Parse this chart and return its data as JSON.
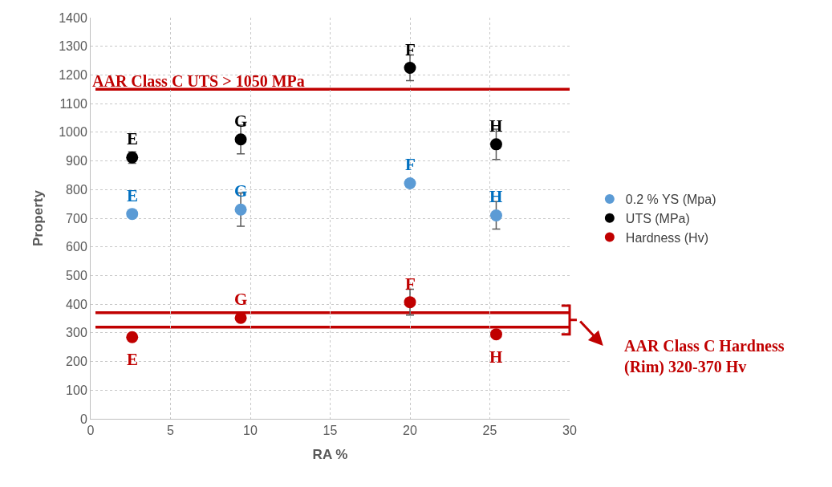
{
  "chart_data": {
    "type": "scatter",
    "xlabel": "RA %",
    "ylabel": "Property",
    "xlim": [
      0,
      30
    ],
    "xticks": [
      0,
      5,
      10,
      15,
      20,
      25,
      30
    ],
    "ylim": [
      0,
      1400
    ],
    "yticks": [
      0,
      100,
      200,
      300,
      400,
      500,
      600,
      700,
      800,
      900,
      1000,
      1100,
      1200,
      1300,
      1400
    ],
    "grid": true,
    "legend": "right",
    "marker": "circle",
    "series": [
      {
        "name": "0.2 % YS (Mpa)",
        "color": "#5b9bd5",
        "x": [
          2.6,
          9.4,
          20,
          25.4
        ],
        "values": [
          715,
          730,
          822,
          710
        ],
        "errors": [
          null,
          58,
          null,
          48
        ]
      },
      {
        "name": "UTS (MPa)",
        "color": "#000000",
        "x": [
          2.6,
          9.4,
          20,
          25.4
        ],
        "values": [
          912,
          975,
          1225,
          958
        ],
        "errors": [
          20,
          50,
          45,
          53
        ]
      },
      {
        "name": "Hardness (Hv)",
        "color": "#c00000",
        "x": [
          2.6,
          9.4,
          20,
          25.4
        ],
        "values": [
          285,
          352,
          407,
          295
        ],
        "errors": [
          null,
          null,
          45,
          null
        ]
      }
    ],
    "ref_lines": [
      {
        "axis": "y",
        "value": 1150,
        "label": "AAR Class C UTS > 1050 MPa",
        "color": "#c00000"
      },
      {
        "axis": "y",
        "value": 370,
        "color": "#c00000"
      },
      {
        "axis": "y",
        "value": 320,
        "color": "#c00000"
      }
    ],
    "annotations": [
      {
        "text": "E",
        "x": 2.6,
        "y": 715
      },
      {
        "text": "G",
        "x": 9.4,
        "y": 730
      },
      {
        "text": "F",
        "x": 20,
        "y": 822
      },
      {
        "text": "H",
        "x": 25.4,
        "y": 710
      },
      {
        "text": "E",
        "x": 2.6,
        "y": 912
      },
      {
        "text": "G",
        "x": 9.4,
        "y": 975
      },
      {
        "text": "F",
        "x": 20,
        "y": 1225
      },
      {
        "text": "H",
        "x": 25.4,
        "y": 958
      },
      {
        "text": "E",
        "x": 2.6,
        "y": 285
      },
      {
        "text": "G",
        "x": 9.4,
        "y": 352
      },
      {
        "text": "F",
        "x": 20,
        "y": 407
      },
      {
        "text": "H",
        "x": 25.4,
        "y": 295
      },
      "AAR Class C Hardness (Rim) 320-370 Hv"
    ]
  }
}
